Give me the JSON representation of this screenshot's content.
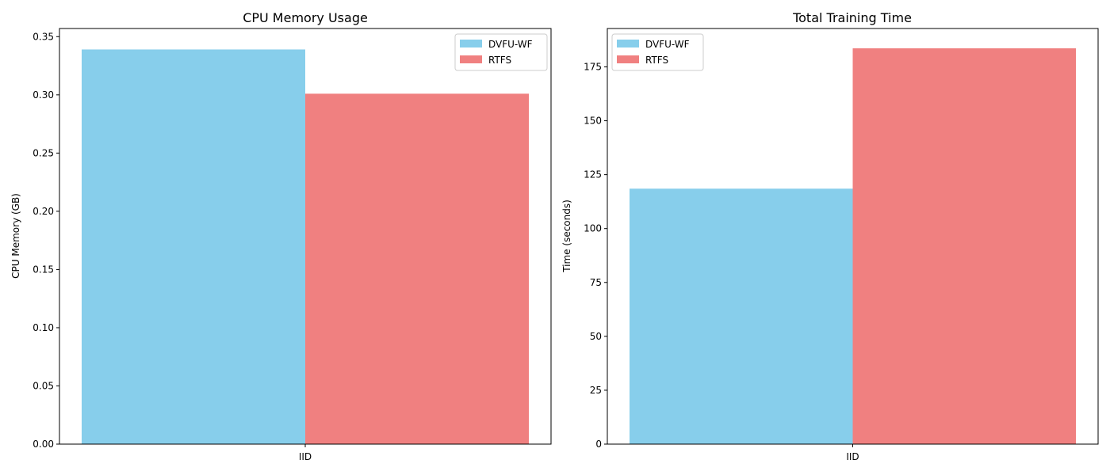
{
  "chart_data": [
    {
      "type": "bar",
      "title": "CPU Memory Usage",
      "xlabel": "",
      "ylabel": "CPU Memory (GB)",
      "categories": [
        "IID"
      ],
      "series": [
        {
          "name": "DVFU-WF",
          "values": [
            0.339
          ],
          "color": "#87CEEB"
        },
        {
          "name": "RTFS",
          "values": [
            0.301
          ],
          "color": "#F08080"
        }
      ],
      "ylim": [
        0,
        0.357
      ],
      "yticks": [
        "0.00",
        "0.05",
        "0.10",
        "0.15",
        "0.20",
        "0.25",
        "0.30",
        "0.35"
      ],
      "ytick_values": [
        0,
        0.05,
        0.1,
        0.15,
        0.2,
        0.25,
        0.3,
        0.35
      ],
      "legend": "top-right",
      "grid": false
    },
    {
      "type": "bar",
      "title": "Total Training Time",
      "xlabel": "",
      "ylabel": "Time (seconds)",
      "categories": [
        "IID"
      ],
      "series": [
        {
          "name": "DVFU-WF",
          "values": [
            118.5
          ],
          "color": "#87CEEB"
        },
        {
          "name": "RTFS",
          "values": [
            183.6
          ],
          "color": "#F08080"
        }
      ],
      "ylim": [
        0,
        192.8
      ],
      "yticks": [
        "0",
        "25",
        "50",
        "75",
        "100",
        "125",
        "150",
        "175"
      ],
      "ytick_values": [
        0,
        25,
        50,
        75,
        100,
        125,
        150,
        175
      ],
      "legend": "top-left",
      "grid": false
    }
  ]
}
